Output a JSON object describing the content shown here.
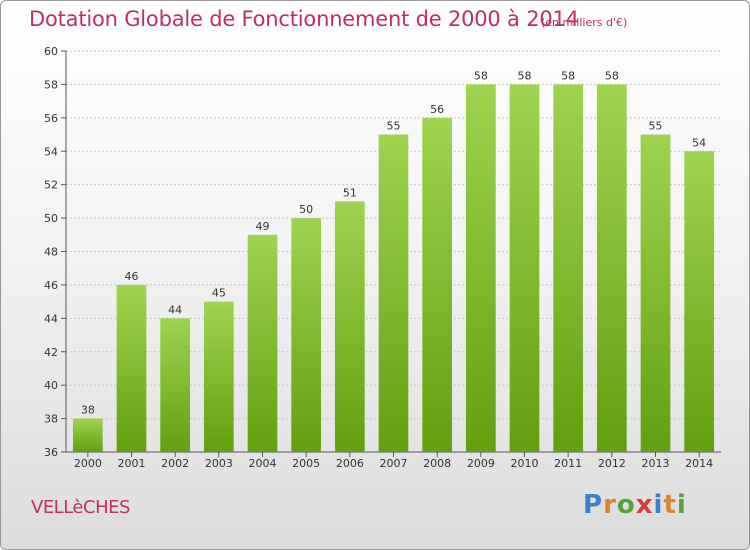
{
  "header": {
    "title": "Dotation Globale de Fonctionnement de 2000 à 2014",
    "unit": "(en milliers d'€)"
  },
  "footer": {
    "commune": "VELLèCHES",
    "logo_letters": [
      "P",
      "r",
      "o",
      "x",
      "i",
      "t",
      "i"
    ],
    "logo_colors": [
      "#3a7fd0",
      "#e0822a",
      "#5aa03a",
      "#d63a3a",
      "#3a7fd0",
      "#e0822a",
      "#5aa03a"
    ]
  },
  "chart_data": {
    "type": "bar",
    "categories": [
      "2000",
      "2001",
      "2002",
      "2003",
      "2004",
      "2005",
      "2006",
      "2007",
      "2008",
      "2009",
      "2010",
      "2011",
      "2012",
      "2013",
      "2014"
    ],
    "values": [
      38,
      46,
      44,
      45,
      49,
      50,
      51,
      55,
      56,
      58,
      58,
      58,
      58,
      55,
      54
    ],
    "title": "Dotation Globale de Fonctionnement de 2000 à 2014",
    "xlabel": "",
    "ylabel": "",
    "ylim": [
      36,
      60
    ],
    "yticks": [
      36,
      38,
      40,
      42,
      44,
      46,
      48,
      50,
      52,
      54,
      56,
      58,
      60
    ],
    "grid": true,
    "bar_color_top": "#9ed450",
    "bar_color_bottom": "#62a010"
  }
}
